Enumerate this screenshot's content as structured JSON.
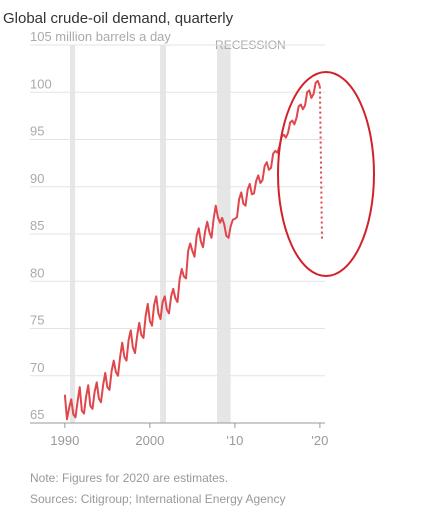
{
  "chart_data": {
    "type": "line",
    "title": "Global crude-oil demand, quarterly",
    "recession_label": "RECESSION",
    "recessions": [
      [
        1990.6,
        1991.2
      ],
      [
        2001.2,
        2001.9
      ],
      [
        2007.9,
        2009.5
      ]
    ],
    "series": [
      {
        "color": "#e0474c",
        "x": [
          1990,
          1990.25,
          1990.5,
          1990.75,
          1991,
          1991.25,
          1991.5,
          1991.75,
          1992,
          1992.25,
          1992.5,
          1992.75,
          1993,
          1993.25,
          1993.5,
          1993.75,
          1994,
          1994.25,
          1994.5,
          1994.75,
          1995,
          1995.25,
          1995.5,
          1995.75,
          1996,
          1996.25,
          1996.5,
          1996.75,
          1997,
          1997.25,
          1997.5,
          1997.75,
          1998,
          1998.25,
          1998.5,
          1998.75,
          1999,
          1999.25,
          1999.5,
          1999.75,
          2000,
          2000.25,
          2000.5,
          2000.75,
          2001,
          2001.25,
          2001.5,
          2001.75,
          2002,
          2002.25,
          2002.5,
          2002.75,
          2003,
          2003.25,
          2003.5,
          2003.75,
          2004,
          2004.25,
          2004.5,
          2004.75,
          2005,
          2005.25,
          2005.5,
          2005.75,
          2006,
          2006.25,
          2006.5,
          2006.75,
          2007,
          2007.25,
          2007.5,
          2007.75,
          2008,
          2008.25,
          2008.5,
          2008.75,
          2009,
          2009.25,
          2009.5,
          2009.75,
          2010,
          2010.25,
          2010.5,
          2010.75,
          2011,
          2011.25,
          2011.5,
          2011.75,
          2012,
          2012.25,
          2012.5,
          2012.75,
          2013,
          2013.25,
          2013.5,
          2013.75,
          2014,
          2014.25,
          2014.5,
          2014.75,
          2015,
          2015.25,
          2015.5,
          2015.75,
          2016,
          2016.25,
          2016.5,
          2016.75,
          2017,
          2017.25,
          2017.5,
          2017.75,
          2018,
          2018.25,
          2018.5,
          2018.75,
          2019,
          2019.25,
          2019.5,
          2019.75,
          2020
        ],
        "values": [
          68.0,
          65.4,
          66.6,
          67.5,
          65.9,
          65.6,
          67.3,
          68.8,
          66.3,
          66.0,
          67.8,
          69.0,
          66.8,
          66.5,
          68.3,
          69.3,
          67.6,
          67.2,
          69.0,
          70.3,
          68.8,
          68.5,
          70.5,
          71.6,
          70.4,
          70.0,
          72.0,
          73.5,
          72.0,
          71.6,
          73.8,
          74.8,
          73.0,
          72.4,
          74.2,
          75.6,
          74.3,
          74.0,
          76.3,
          77.6,
          75.8,
          75.3,
          77.5,
          78.4,
          76.6,
          76.0,
          77.8,
          78.4,
          77.0,
          76.6,
          78.4,
          79.2,
          78.2,
          77.8,
          80.2,
          81.3,
          80.5,
          80.3,
          83.2,
          84.0,
          83.2,
          82.6,
          84.8,
          85.6,
          84.2,
          83.6,
          85.3,
          86.3,
          85.2,
          84.6,
          86.6,
          88.0,
          86.8,
          86.2,
          86.7,
          86.0,
          84.8,
          84.6,
          85.8,
          86.5,
          86.6,
          86.8,
          88.7,
          89.4,
          88.2,
          88.0,
          89.7,
          90.3,
          89.2,
          89.3,
          90.6,
          91.2,
          90.4,
          90.7,
          92.2,
          92.6,
          91.8,
          92.0,
          93.5,
          93.8,
          93.6,
          94.3,
          95.3,
          95.5,
          95.2,
          95.7,
          96.8,
          97.0,
          96.6,
          97.3,
          98.5,
          98.7,
          98.2,
          98.6,
          100.0,
          100.2,
          99.4,
          99.8,
          101.0,
          101.2,
          100.6
        ]
      },
      {
        "color": "#e0474c",
        "dashed": true,
        "x": [
          2020,
          2020.25
        ],
        "values": [
          100.6,
          84.3
        ]
      }
    ],
    "xlim": [
      1985.9,
      2020.6
    ],
    "xticks": [
      1990,
      2000,
      {
        "value": 2010,
        "label": "'10"
      },
      {
        "value": 2020,
        "label": "'20"
      }
    ],
    "ylim": [
      65,
      105
    ],
    "yticks": [
      65,
      70,
      75,
      80,
      85,
      90,
      95,
      100,
      {
        "value": 105,
        "label": "105 million barrels a day"
      }
    ],
    "grid": true,
    "notes": [
      "Note: Figures for 2020 are estimates.",
      "Sources: Citigroup; International Energy Agency"
    ]
  }
}
